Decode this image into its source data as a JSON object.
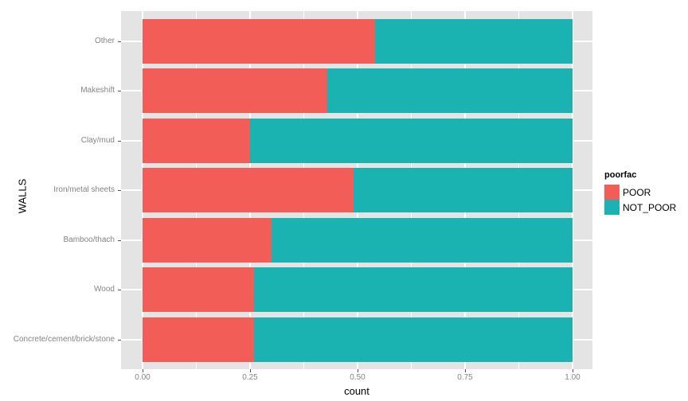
{
  "figure": {
    "background": "#FFFFFF",
    "panel_background": "#E4E4E4",
    "gridline_color": "#FFFFFF",
    "tick_label_color": "#858585",
    "axis_title_color": "#000000"
  },
  "chart_data": {
    "type": "bar",
    "orientation": "horizontal",
    "stacked": true,
    "normalized": true,
    "title": "",
    "xlabel": "count",
    "ylabel": "WALLS",
    "xlim": [
      0,
      1
    ],
    "grid": true,
    "categories": [
      "Other",
      "Makeshift",
      "Clay/mud",
      "Iron/metal sheets",
      "Bamboo/thach",
      "Wood",
      "Concrete/cement/brick/stone"
    ],
    "series": [
      {
        "name": "POOR",
        "color": "#F25D58",
        "values": [
          0.54,
          0.43,
          0.25,
          0.49,
          0.3,
          0.26,
          0.26
        ]
      },
      {
        "name": "NOT_POOR",
        "color": "#1AB3B1",
        "values": [
          0.46,
          0.57,
          0.75,
          0.51,
          0.7,
          0.74,
          0.74
        ]
      }
    ],
    "x_tick_labels": [
      "0.00",
      "0.25",
      "0.50",
      "0.75",
      "1.00"
    ],
    "x_tick_values": [
      0,
      0.25,
      0.5,
      0.75,
      1.0
    ],
    "x_minor_tick_values": [
      0.125,
      0.375,
      0.625,
      0.875
    ],
    "legend": {
      "title": "poorfac",
      "position": "right",
      "entries": [
        {
          "label": "POOR",
          "color": "#F25D58"
        },
        {
          "label": "NOT_POOR",
          "color": "#1AB3B1"
        }
      ]
    }
  }
}
